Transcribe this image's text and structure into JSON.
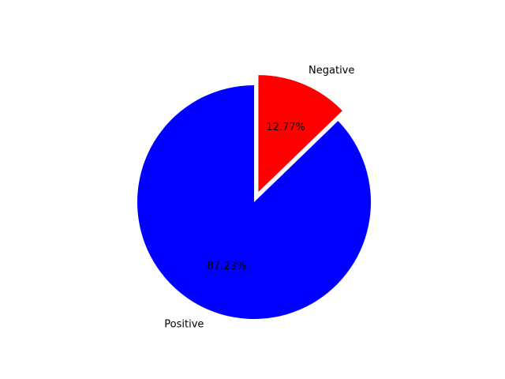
{
  "chart_data": {
    "type": "pie",
    "title": "",
    "start_angle_deg": 90,
    "direction": "clockwise",
    "legend": "none",
    "slices": [
      {
        "label": "Negative",
        "value": 12.77,
        "percent_label": "12.77%",
        "color": "#ff0000",
        "exploded": true
      },
      {
        "label": "Positive",
        "value": 87.23,
        "percent_label": "87.23%",
        "color": "#0000ff",
        "exploded": false
      }
    ]
  }
}
